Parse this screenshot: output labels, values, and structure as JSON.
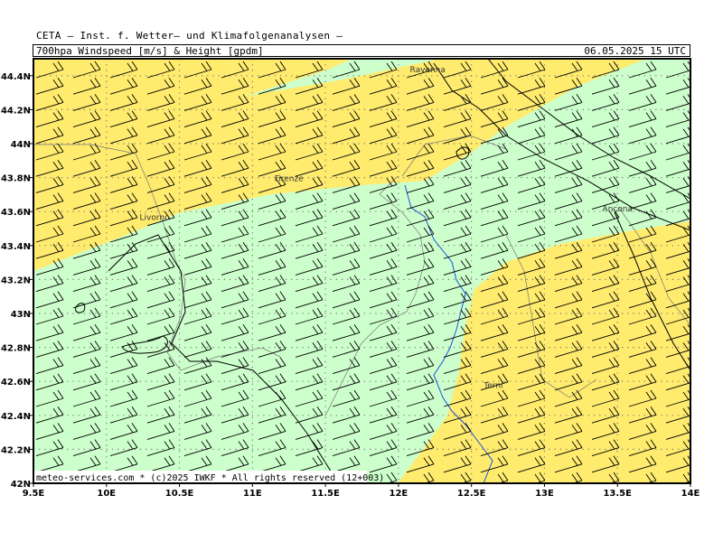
{
  "header": {
    "institute_line": "CETA — Inst. f. Wetter— und Klimafolgenanalysen —",
    "product_title": "700hpa_Windspeed_[m/s]_&_Height_[gpdm]",
    "valid_time": "06.05.2025  15 UTC"
  },
  "map": {
    "colors": {
      "green_band": "#ccffcc",
      "yellow_band": "#ffeb6e",
      "grid_dots": "#7a7a7a",
      "coast_border": "#000000",
      "river": "#1f4fd8",
      "regions": "#777777"
    },
    "x_axis": {
      "range": [
        9.5,
        14.0
      ],
      "ticks": [
        {
          "value": 9.5,
          "label": "9.5E"
        },
        {
          "value": 10.0,
          "label": "10E"
        },
        {
          "value": 10.5,
          "label": "10.5E"
        },
        {
          "value": 11.0,
          "label": "11E"
        },
        {
          "value": 11.5,
          "label": "11.5E"
        },
        {
          "value": 12.0,
          "label": "12E"
        },
        {
          "value": 12.5,
          "label": "12.5E"
        },
        {
          "value": 13.0,
          "label": "13E"
        },
        {
          "value": 13.5,
          "label": "13.5E"
        },
        {
          "value": 14.0,
          "label": "14E"
        }
      ]
    },
    "y_axis": {
      "range": [
        42.0,
        44.5
      ],
      "ticks": [
        {
          "value": 42.0,
          "label": "42N"
        },
        {
          "value": 42.2,
          "label": "42.2N"
        },
        {
          "value": 42.4,
          "label": "42.4N"
        },
        {
          "value": 42.6,
          "label": "42.6N"
        },
        {
          "value": 42.8,
          "label": "42.8N"
        },
        {
          "value": 43.0,
          "label": "43N"
        },
        {
          "value": 43.2,
          "label": "43.2N"
        },
        {
          "value": 43.4,
          "label": "43.4N"
        },
        {
          "value": 43.6,
          "label": "43.6N"
        },
        {
          "value": 43.8,
          "label": "43.8N"
        },
        {
          "value": 44.0,
          "label": "44N"
        },
        {
          "value": 44.2,
          "label": "44.2N"
        },
        {
          "value": 44.4,
          "label": "44.4N"
        }
      ]
    },
    "cities": [
      {
        "name": "Ravenna",
        "lon": 12.2,
        "lat": 44.42
      },
      {
        "name": "Firenze",
        "lon": 11.25,
        "lat": 43.78
      },
      {
        "name": "Livorno",
        "lon": 10.33,
        "lat": 43.55
      },
      {
        "name": "Ancona",
        "lon": 13.5,
        "lat": 43.6
      },
      {
        "name": "Terni",
        "lon": 12.65,
        "lat": 42.56
      }
    ],
    "footer": "meteo-services.com * (c)2025 IWKF * All rights reserved (12+003)"
  }
}
